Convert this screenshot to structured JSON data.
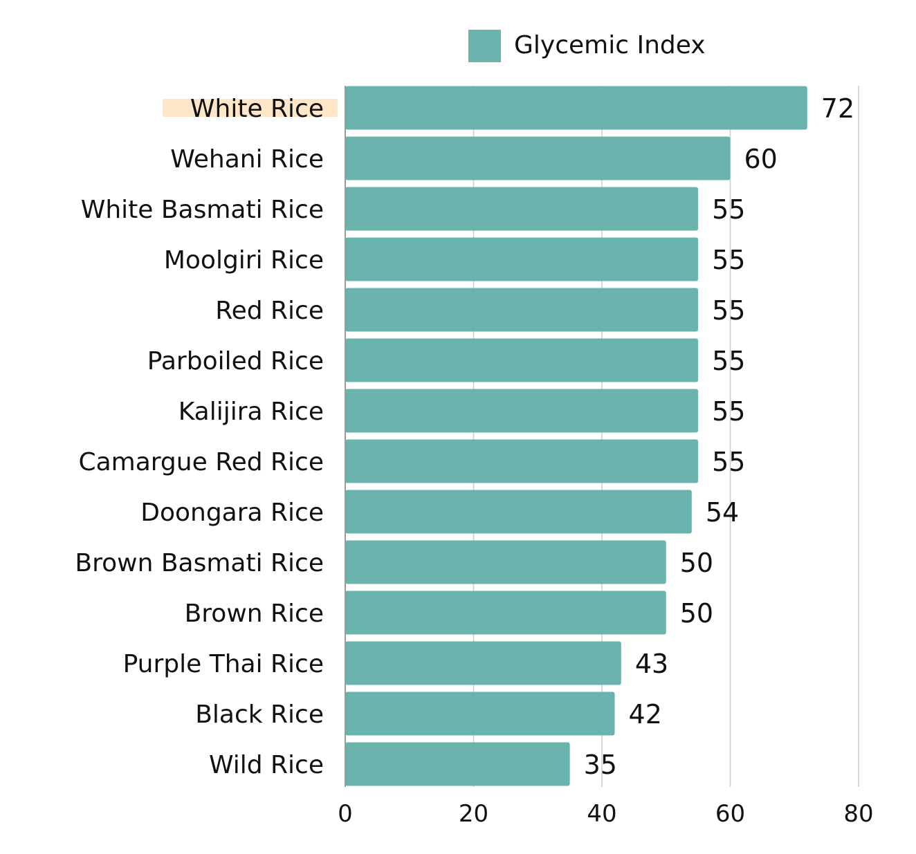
{
  "chart_data": {
    "type": "bar",
    "orientation": "horizontal",
    "categories": [
      "White Rice",
      "Wehani Rice",
      "White Basmati Rice",
      "Moolgiri Rice",
      "Red Rice",
      "Parboiled Rice",
      "Kalijira Rice",
      "Camargue Red Rice",
      "Doongara Rice",
      "Brown Basmati Rice",
      "Brown Rice",
      "Purple Thai Rice",
      "Black Rice",
      "Wild Rice"
    ],
    "series": [
      {
        "name": "Glycemic Index",
        "values": [
          72,
          60,
          55,
          55,
          55,
          55,
          55,
          55,
          54,
          50,
          50,
          43,
          42,
          35
        ]
      }
    ],
    "highlighted_category": "White Rice",
    "xlim": [
      0,
      80
    ],
    "xticks": [
      0,
      20,
      40,
      60,
      80
    ],
    "grid": "vertical",
    "legend": "top",
    "colors": {
      "bar": "#6bb3ad",
      "grid": "#cccccc",
      "highlight": "#fde7c8",
      "text": "#111111"
    }
  }
}
